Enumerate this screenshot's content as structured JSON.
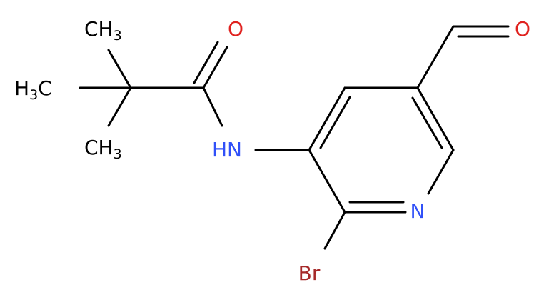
{
  "atoms": [
    {
      "main": "CH",
      "sub": "3"
    },
    {
      "sub": "3",
      "main": "C",
      "prefix": "H"
    },
    {
      "main": "CH",
      "sub": "3"
    },
    {
      "main": "O"
    },
    {
      "main": "HN"
    },
    {
      "main": "N"
    },
    {
      "main": "Br"
    },
    {
      "main": "O"
    }
  ]
}
